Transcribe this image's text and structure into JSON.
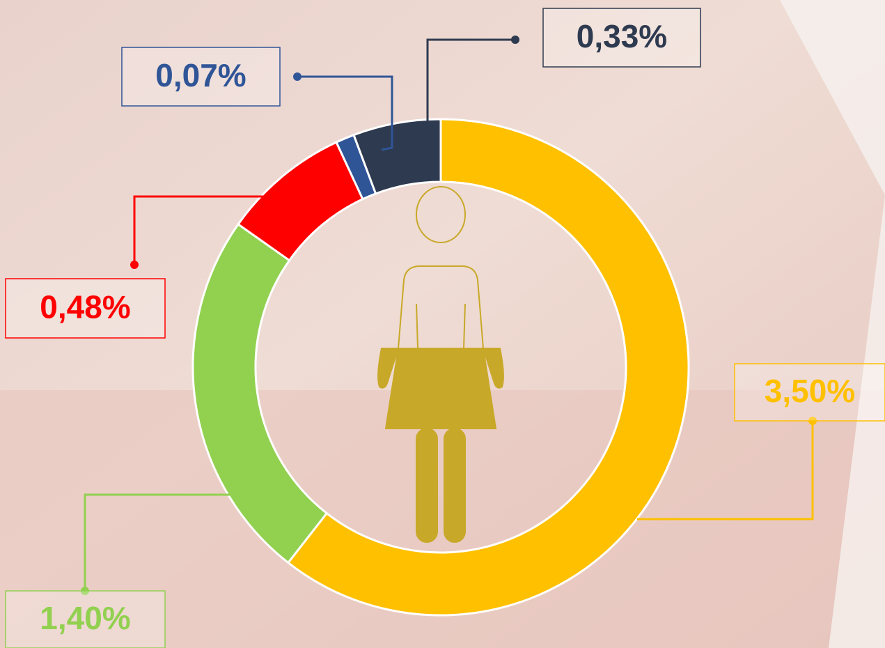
{
  "chart_data": {
    "type": "donut",
    "values": [
      3.5,
      1.4,
      0.48,
      0.07,
      0.33
    ],
    "value_labels": [
      "3,50%",
      "1,40%",
      "0,48%",
      "0,07%",
      "0,33%"
    ],
    "colors": [
      "#FFC000",
      "#92D050",
      "#FF0000",
      "#2F5597",
      "#2E3A4F"
    ]
  }
}
